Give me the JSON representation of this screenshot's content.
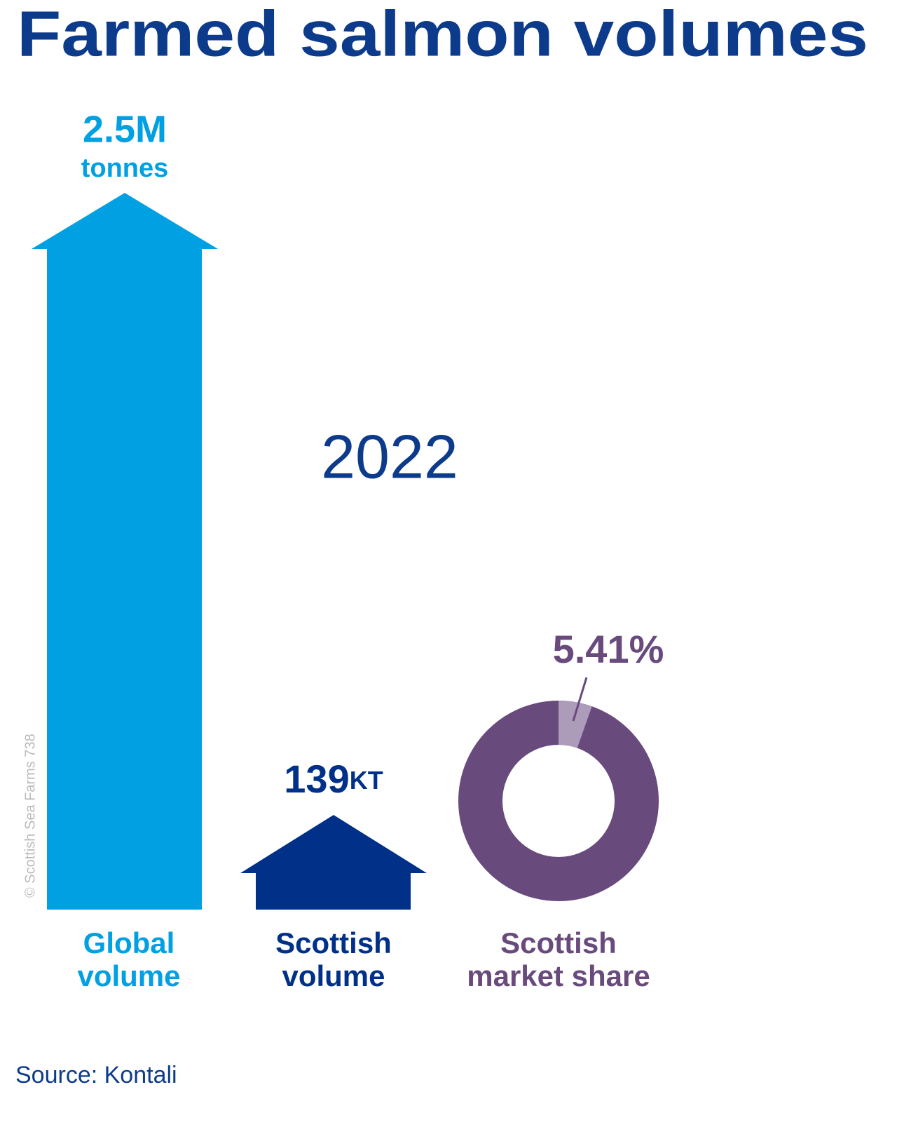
{
  "title": "Farmed salmon volumes",
  "year": "2022",
  "global": {
    "value": "2.5M",
    "unit": "tonnes",
    "label": [
      "Global",
      "volume"
    ]
  },
  "scottish": {
    "value": "139",
    "unit": "KT",
    "label": [
      "Scottish",
      "volume"
    ]
  },
  "share": {
    "value": 5.41,
    "value_label": "5.41%",
    "label": [
      "Scottish",
      "market share"
    ]
  },
  "copyright": "© Scottish Sea Farms 738",
  "source": "Source: Kontali"
}
